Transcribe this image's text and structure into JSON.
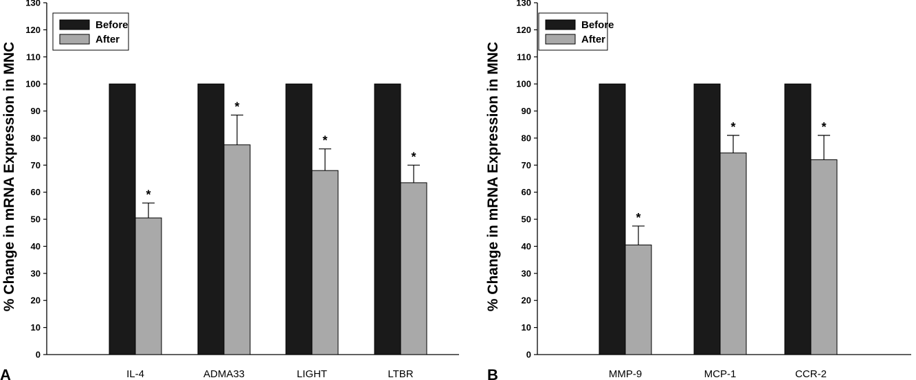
{
  "chart_data": [
    {
      "type": "bar",
      "panel_label": "A",
      "ylabel": "% Change in mRNA Expression in MNC",
      "ylim": [
        0,
        130
      ],
      "yticks": [
        0,
        10,
        20,
        30,
        40,
        50,
        60,
        70,
        80,
        90,
        100,
        110,
        120,
        130
      ],
      "categories": [
        "IL-4",
        "ADMA33",
        "LIGHT",
        "LTBR"
      ],
      "legend": {
        "position": "top-left"
      },
      "series": [
        {
          "name": "Before",
          "color": "#1a1a1a",
          "values": [
            100,
            100,
            100,
            100
          ]
        },
        {
          "name": "After",
          "color": "#a9a9a9",
          "values": [
            50.5,
            77.5,
            68,
            63.5
          ],
          "error": [
            5.5,
            11,
            8,
            6.5
          ]
        }
      ],
      "annotations": [
        "*",
        "*",
        "*",
        "*"
      ]
    },
    {
      "type": "bar",
      "panel_label": "B",
      "ylabel": "% Change in mRNA Expression in MNC",
      "ylim": [
        0,
        130
      ],
      "yticks": [
        0,
        10,
        20,
        30,
        40,
        50,
        60,
        70,
        80,
        90,
        100,
        110,
        120,
        130
      ],
      "categories": [
        "MMP-9",
        "MCP-1",
        "CCR-2"
      ],
      "legend": {
        "position": "top-left"
      },
      "series": [
        {
          "name": "Before",
          "color": "#1a1a1a",
          "values": [
            100,
            100,
            100
          ]
        },
        {
          "name": "After",
          "color": "#a9a9a9",
          "values": [
            40.5,
            74.5,
            72
          ],
          "error": [
            7,
            6.5,
            9
          ]
        }
      ],
      "annotations": [
        "*",
        "*",
        "*"
      ]
    }
  ]
}
